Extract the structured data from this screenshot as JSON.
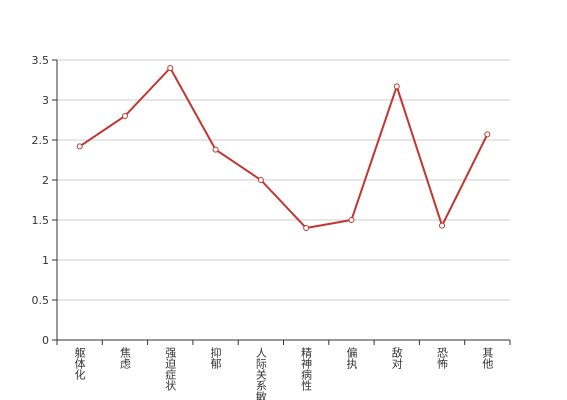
{
  "chart_data": {
    "type": "line",
    "categories": [
      "躯体化",
      "焦虑",
      "强迫症状",
      "抑郁",
      "人际关系敏感",
      "精神病性",
      "偏执",
      "敌对",
      "恐怖",
      "其他"
    ],
    "values": [
      2.42,
      2.8,
      3.4,
      2.38,
      2.0,
      1.4,
      1.5,
      3.17,
      1.43,
      2.57
    ],
    "color": "#c23531",
    "ylim": [
      0,
      3.5
    ],
    "yticks": [
      0,
      0.5,
      1,
      1.5,
      2,
      2.5,
      3,
      3.5
    ],
    "grid": true
  }
}
